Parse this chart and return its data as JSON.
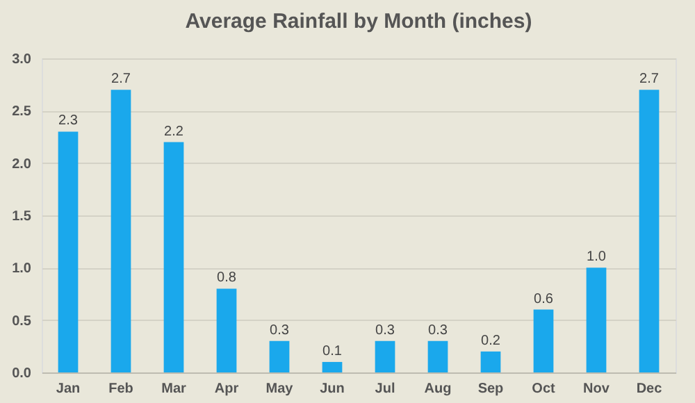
{
  "chart_data": {
    "type": "bar",
    "title": "Average Rainfall by Month (inches)",
    "categories": [
      "Jan",
      "Feb",
      "Mar",
      "Apr",
      "May",
      "Jun",
      "Jul",
      "Aug",
      "Sep",
      "Oct",
      "Nov",
      "Dec"
    ],
    "values": [
      2.3,
      2.7,
      2.2,
      0.8,
      0.3,
      0.1,
      0.3,
      0.3,
      0.2,
      0.6,
      1.0,
      2.7
    ],
    "color": "#1aa8ec",
    "ylim": [
      0,
      3
    ],
    "yticks": [
      {
        "value": 0,
        "label": "0.0"
      },
      {
        "value": 0.5,
        "label": "0.5"
      },
      {
        "value": 1,
        "label": "1.0"
      },
      {
        "value": 1.5,
        "label": "1.5"
      },
      {
        "value": 2,
        "label": "2.0"
      },
      {
        "value": 2.5,
        "label": "2.5"
      },
      {
        "value": 3,
        "label": "3.0"
      }
    ],
    "grid": "y",
    "value_labels": [
      "2.3",
      "2.7",
      "2.2",
      "0.8",
      "0.3",
      "0.1",
      "0.3",
      "0.3",
      "0.2",
      "0.6",
      "1.0",
      "2.7"
    ]
  }
}
